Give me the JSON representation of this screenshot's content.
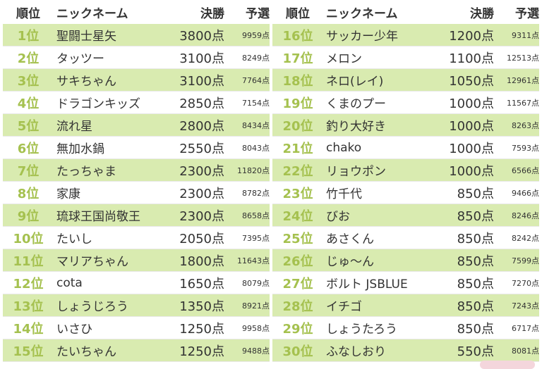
{
  "headers": {
    "rank": "順位",
    "name": "ニックネーム",
    "final": "決勝",
    "prelim": "予選"
  },
  "left": [
    {
      "rank": "1位",
      "name": "聖闘士星矢",
      "final": "3800点",
      "prelim": "9959点"
    },
    {
      "rank": "2位",
      "name": "タッツー",
      "final": "3100点",
      "prelim": "8249点"
    },
    {
      "rank": "3位",
      "name": "サキちゃん",
      "final": "3100点",
      "prelim": "7764点"
    },
    {
      "rank": "4位",
      "name": "ドラゴンキッズ",
      "final": "2850点",
      "prelim": "7154点"
    },
    {
      "rank": "5位",
      "name": "流れ星",
      "final": "2800点",
      "prelim": "8434点"
    },
    {
      "rank": "6位",
      "name": "無加水鍋",
      "final": "2550点",
      "prelim": "8043点"
    },
    {
      "rank": "7位",
      "name": "たっちゃま",
      "final": "2300点",
      "prelim": "11820点"
    },
    {
      "rank": "8位",
      "name": "家康",
      "final": "2300点",
      "prelim": "8782点"
    },
    {
      "rank": "9位",
      "name": "琉球王国尚敬王",
      "final": "2300点",
      "prelim": "8658点"
    },
    {
      "rank": "10位",
      "name": "たいし",
      "final": "2050点",
      "prelim": "7395点"
    },
    {
      "rank": "11位",
      "name": "マリアちゃん",
      "final": "1800点",
      "prelim": "11643点"
    },
    {
      "rank": "12位",
      "name": "cota",
      "final": "1650点",
      "prelim": "8079点"
    },
    {
      "rank": "13位",
      "name": "しょうじろう",
      "final": "1350点",
      "prelim": "8921点"
    },
    {
      "rank": "14位",
      "name": "いさひ",
      "final": "1250点",
      "prelim": "9958点"
    },
    {
      "rank": "15位",
      "name": "たいちゃん",
      "final": "1250点",
      "prelim": "9488点"
    }
  ],
  "right": [
    {
      "rank": "16位",
      "name": "サッカー少年",
      "final": "1200点",
      "prelim": "9311点"
    },
    {
      "rank": "17位",
      "name": "メロン",
      "final": "1100点",
      "prelim": "12513点"
    },
    {
      "rank": "18位",
      "name": "ネロ(レイ)",
      "final": "1050点",
      "prelim": "12961点"
    },
    {
      "rank": "19位",
      "name": "くまのプー",
      "final": "1000点",
      "prelim": "11567点"
    },
    {
      "rank": "20位",
      "name": "釣り大好き",
      "final": "1000点",
      "prelim": "8263点"
    },
    {
      "rank": "21位",
      "name": "chako",
      "final": "1000点",
      "prelim": "7593点"
    },
    {
      "rank": "22位",
      "name": "リョウポン",
      "final": "1000点",
      "prelim": "6566点"
    },
    {
      "rank": "23位",
      "name": "竹千代",
      "final": "850点",
      "prelim": "9466点"
    },
    {
      "rank": "24位",
      "name": "びお",
      "final": "850点",
      "prelim": "8246点"
    },
    {
      "rank": "25位",
      "name": "あさくん",
      "final": "850点",
      "prelim": "8242点"
    },
    {
      "rank": "26位",
      "name": "じゅ〜ん",
      "final": "850点",
      "prelim": "7599点"
    },
    {
      "rank": "27位",
      "name": "ボルト JSBLUE",
      "final": "850点",
      "prelim": "7270点"
    },
    {
      "rank": "28位",
      "name": "イチゴ",
      "final": "850点",
      "prelim": "7243点"
    },
    {
      "rank": "29位",
      "name": "しょうたろう",
      "final": "850点",
      "prelim": "6717点"
    },
    {
      "rank": "30位",
      "name": "ふなしおり",
      "final": "550点",
      "prelim": "8081点"
    }
  ],
  "colors": {
    "highlight_row": "#d9ebb0",
    "rank_text": "#a5c14f",
    "text": "#333333"
  }
}
